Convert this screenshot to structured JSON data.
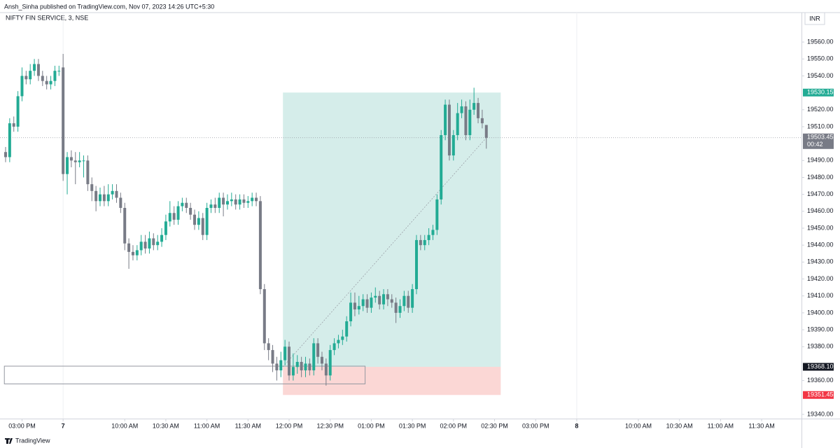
{
  "chart_data": {
    "type": "candlestick",
    "header": "Ansh_Sinha published on TradingView.com, Nov 07, 2023 14:26 UTC+5:30",
    "symbol": "NIFTY FIN SERVICE, 3, NSE",
    "currency": "INR",
    "logo": "TradingView",
    "up_color": "#22ab94",
    "down_color": "#787b86",
    "open": [
      19495,
      19492,
      19512,
      19510,
      19528,
      19540,
      19538,
      19543,
      19547,
      19540,
      19537,
      19535,
      19537,
      19543,
      19545,
      19482,
      19492,
      19490,
      19489,
      19490,
      19490,
      19476,
      19472,
      19466,
      19470,
      19466,
      19470,
      19472,
      19468,
      19462,
      19441,
      19436,
      19434,
      19437,
      19442,
      19438,
      19444,
      19440,
      19442,
      19446,
      19454,
      19459,
      19455,
      19463,
      19465,
      19462,
      19458,
      19452,
      19456,
      19446,
      19462,
      19464,
      19462,
      19468,
      19464,
      19466,
      19467,
      19464,
      19467,
      19465,
      19466,
      19468,
      19466,
      19414,
      19382,
      19378,
      19370,
      19366,
      19372,
      19380,
      19363,
      19368,
      19371,
      19366,
      19370,
      19366,
      19382,
      19374,
      19370,
      19363,
      19378,
      19382,
      19384,
      19386,
      19395,
      19406,
      19402,
      19404,
      19408,
      19403,
      19409,
      19410,
      19405,
      19411,
      19408,
      19406,
      19400,
      19404,
      19410,
      19403,
      19414,
      19443,
      19440,
      19443,
      19446,
      19449,
      19467,
      19505,
      19523,
      19493,
      19505,
      19518,
      19522,
      19505,
      19520,
      19524,
      19515,
      19511
    ],
    "high": [
      19498,
      19515,
      19516,
      19531,
      19545,
      19543,
      19547,
      19550,
      19550,
      19543,
      19540,
      19540,
      19546,
      19546,
      19553,
      19495,
      19496,
      19495,
      19495,
      19493,
      19493,
      19480,
      19475,
      19474,
      19475,
      19476,
      19476,
      19476,
      19471,
      19465,
      19444,
      19440,
      19440,
      19446,
      19446,
      19448,
      19447,
      19446,
      19450,
      19458,
      19466,
      19463,
      19466,
      19468,
      19468,
      19465,
      19461,
      19460,
      19459,
      19465,
      19467,
      19468,
      19471,
      19471,
      19470,
      19471,
      19470,
      19470,
      19470,
      19469,
      19471,
      19471,
      19469,
      19417,
      19385,
      19381,
      19374,
      19377,
      19384,
      19383,
      19376,
      19375,
      19374,
      19374,
      19373,
      19385,
      19385,
      19377,
      19373,
      19381,
      19385,
      19387,
      19390,
      19398,
      19412,
      19412,
      19410,
      19411,
      19411,
      19412,
      19415,
      19413,
      19414,
      19414,
      19411,
      19409,
      19408,
      19413,
      19413,
      19417,
      19446,
      19446,
      19446,
      19450,
      19452,
      19470,
      19508,
      19526,
      19526,
      19508,
      19524,
      19526,
      19525,
      19526,
      19533,
      19527,
      19520,
      19511
    ],
    "low": [
      19489,
      19489,
      19507,
      19507,
      19525,
      19535,
      19535,
      19540,
      19537,
      19534,
      19532,
      19532,
      19534,
      19540,
      19478,
      19470,
      19486,
      19476,
      19486,
      19480,
      19472,
      19466,
      19460,
      19463,
      19463,
      19463,
      19467,
      19465,
      19459,
      19437,
      19426,
      19431,
      19431,
      19434,
      19435,
      19435,
      19437,
      19437,
      19439,
      19443,
      19451,
      19452,
      19452,
      19460,
      19459,
      19455,
      19449,
      19449,
      19443,
      19443,
      19459,
      19459,
      19459,
      19457,
      19461,
      19463,
      19461,
      19461,
      19462,
      19462,
      19463,
      19463,
      19411,
      19378,
      19372,
      19365,
      19360,
      19362,
      19369,
      19360,
      19360,
      19364,
      19362,
      19362,
      19363,
      19363,
      19370,
      19366,
      19357,
      19360,
      19375,
      19379,
      19381,
      19383,
      19392,
      19398,
      19399,
      19401,
      19400,
      19400,
      19406,
      19402,
      19402,
      19404,
      19403,
      19394,
      19397,
      19401,
      19400,
      19400,
      19411,
      19437,
      19437,
      19440,
      19443,
      19446,
      19464,
      19502,
      19490,
      19490,
      19502,
      19515,
      19502,
      19502,
      19517,
      19512,
      19509,
      19497
    ],
    "close": [
      19492,
      19512,
      19510,
      19528,
      19540,
      19538,
      19543,
      19547,
      19540,
      19537,
      19535,
      19537,
      19543,
      19543,
      19482,
      19492,
      19490,
      19489,
      19490,
      19490,
      19476,
      19472,
      19466,
      19470,
      19466,
      19470,
      19472,
      19468,
      19462,
      19441,
      19436,
      19434,
      19437,
      19442,
      19438,
      19444,
      19440,
      19442,
      19446,
      19454,
      19459,
      19455,
      19463,
      19465,
      19462,
      19458,
      19452,
      19456,
      19446,
      19462,
      19464,
      19462,
      19468,
      19464,
      19466,
      19467,
      19464,
      19467,
      19465,
      19466,
      19468,
      19466,
      19414,
      19382,
      19378,
      19370,
      19366,
      19372,
      19380,
      19363,
      19368,
      19371,
      19366,
      19370,
      19366,
      19382,
      19374,
      19370,
      19363,
      19378,
      19382,
      19384,
      19386,
      19395,
      19406,
      19402,
      19404,
      19408,
      19403,
      19409,
      19410,
      19405,
      19411,
      19408,
      19406,
      19400,
      19404,
      19410,
      19403,
      19414,
      19443,
      19440,
      19443,
      19446,
      19449,
      19467,
      19505,
      19523,
      19493,
      19505,
      19518,
      19522,
      19505,
      19520,
      19524,
      19515,
      19512,
      19503.45
    ],
    "xlim": [
      -1.36,
      193.7
    ],
    "xticks": [
      {
        "value": 4,
        "label": "03:00 PM"
      },
      {
        "value": 14,
        "label": "7"
      },
      {
        "value": 29,
        "label": "10:00 AM"
      },
      {
        "value": 39,
        "label": "10:30 AM"
      },
      {
        "value": 49,
        "label": "11:00 AM"
      },
      {
        "value": 59,
        "label": "11:30 AM"
      },
      {
        "value": 69,
        "label": "12:00 PM"
      },
      {
        "value": 79,
        "label": "12:30 PM"
      },
      {
        "value": 89,
        "label": "01:00 PM"
      },
      {
        "value": 99,
        "label": "01:30 PM"
      },
      {
        "value": 109,
        "label": "02:00 PM"
      },
      {
        "value": 119,
        "label": "02:30 PM"
      },
      {
        "value": 129,
        "label": "03:00 PM"
      },
      {
        "value": 139,
        "label": "8"
      },
      {
        "value": 154,
        "label": "10:00 AM"
      },
      {
        "value": 164,
        "label": "10:30 AM"
      },
      {
        "value": 174,
        "label": "11:00 AM"
      },
      {
        "value": 184,
        "label": "11:30 AM"
      }
    ],
    "ylim": [
      19337.5,
      19577.4
    ],
    "yticks": [
      {
        "value": 19560,
        "label": "19560.00"
      },
      {
        "value": 19550,
        "label": "19550.00"
      },
      {
        "value": 19540,
        "label": "19540.00"
      },
      {
        "value": 19520,
        "label": "19520.00"
      },
      {
        "value": 19510,
        "label": "19510.00"
      },
      {
        "value": 19490,
        "label": "19490.00"
      },
      {
        "value": 19480,
        "label": "19480.00"
      },
      {
        "value": 19470,
        "label": "19470.00"
      },
      {
        "value": 19460,
        "label": "19460.00"
      },
      {
        "value": 19450,
        "label": "19450.00"
      },
      {
        "value": 19440,
        "label": "19440.00"
      },
      {
        "value": 19430,
        "label": "19430.00"
      },
      {
        "value": 19420,
        "label": "19420.00"
      },
      {
        "value": 19410,
        "label": "19410.00"
      },
      {
        "value": 19400,
        "label": "19400.00"
      },
      {
        "value": 19390,
        "label": "19390.00"
      },
      {
        "value": 19380,
        "label": "19380.00"
      },
      {
        "value": 19360,
        "label": "19360.00"
      },
      {
        "value": 19340,
        "label": "19340.00"
      }
    ],
    "position": {
      "start": 67.5,
      "end": 120.5,
      "entry": {
        "value": 19368.1,
        "label": "19368.10"
      },
      "target": 19530.15,
      "stop": 19351.45,
      "profit_color": "#d0ebe8",
      "loss_color": "#fbd7d5"
    },
    "rectangle": {
      "start": -0.3,
      "end": 87.5,
      "top": 19368.5,
      "bottom": 19358
    },
    "last_price": 19503.45,
    "countdown": "00:42"
  }
}
